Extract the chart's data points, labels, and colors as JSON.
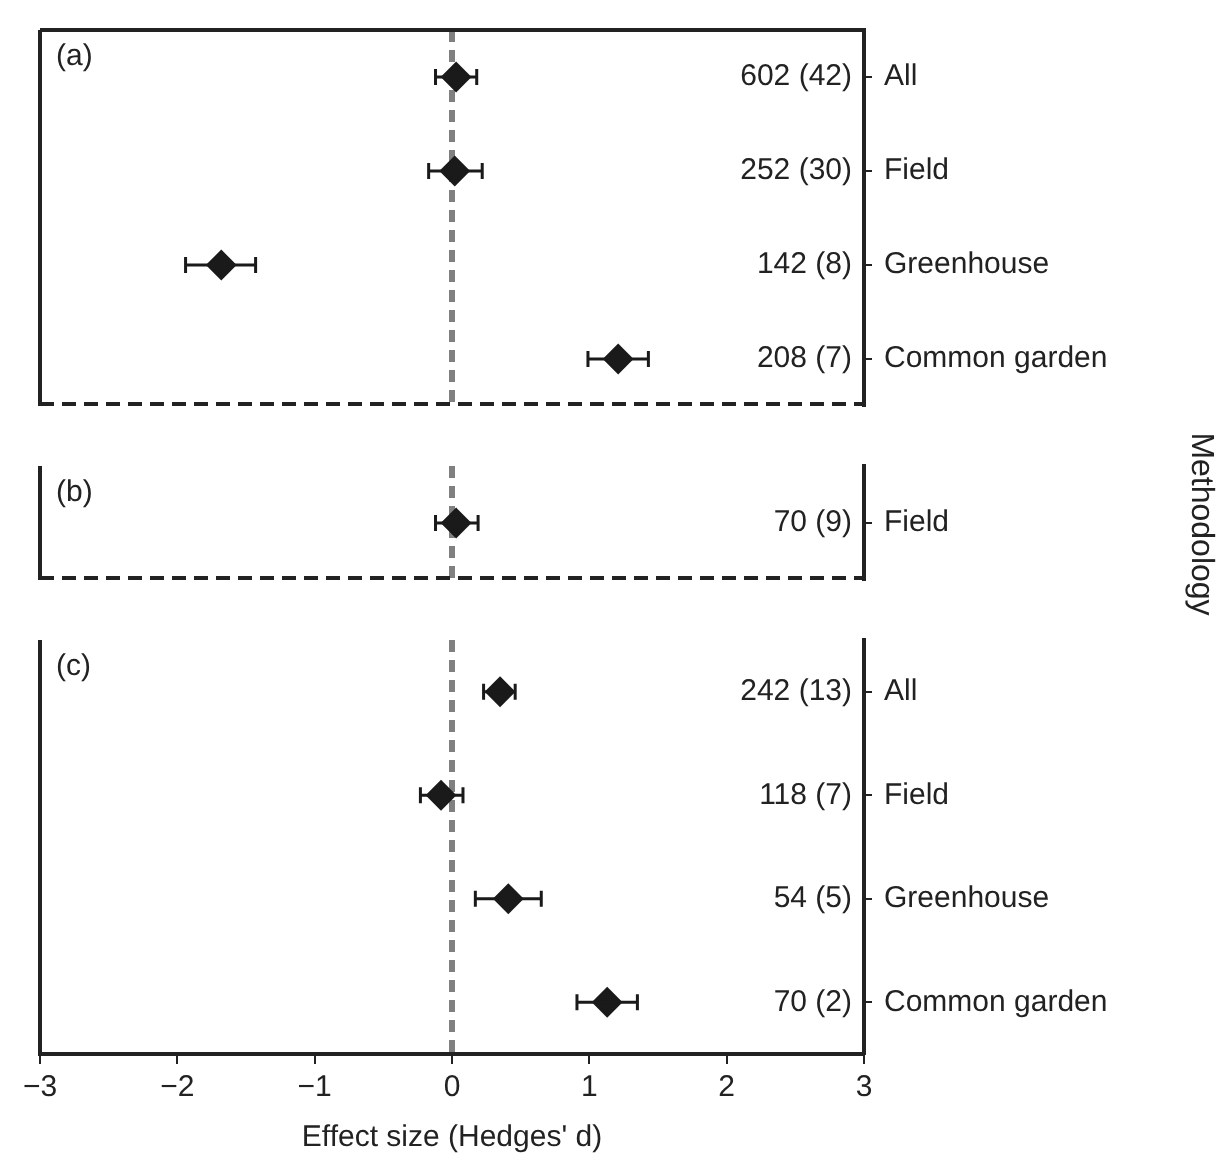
{
  "chart_data": [
    {
      "type": "scatter",
      "title": "(a)",
      "orientation": "horizontal",
      "categories": [
        "All",
        "Field",
        "Greenhouse",
        "Common garden"
      ],
      "values": [
        0.03,
        0.02,
        -1.68,
        1.21
      ],
      "errors": [
        [
          -0.12,
          0.18
        ],
        [
          -0.17,
          0.22
        ],
        [
          -1.94,
          -1.43
        ],
        [
          0.99,
          1.43
        ]
      ],
      "annotations": [
        "602 (42)",
        "252 (30)",
        "142 (8)",
        "208 (7)"
      ],
      "color": "#1a1a1a",
      "marker": "diamond",
      "xlim": [
        -3,
        3
      ],
      "tick_labels": "y",
      "ref_lines": [
        {
          "axis": "x",
          "value": 0,
          "color": "#808080",
          "line_style": "dashed"
        }
      ]
    },
    {
      "type": "scatter",
      "title": "(b)",
      "orientation": "horizontal",
      "categories": [
        "Field"
      ],
      "values": [
        0.03
      ],
      "errors": [
        [
          -0.12,
          0.19
        ]
      ],
      "annotations": [
        "70 (9)"
      ],
      "color": "#1a1a1a",
      "marker": "diamond",
      "ylabel": "Methodology",
      "xlim": [
        -3,
        3
      ],
      "tick_labels": "y",
      "ref_lines": [
        {
          "axis": "x",
          "value": 0,
          "color": "#808080",
          "line_style": "dashed"
        }
      ]
    },
    {
      "type": "scatter",
      "title": "(c)",
      "orientation": "horizontal",
      "categories": [
        "All",
        "Field",
        "Greenhouse",
        "Common garden"
      ],
      "values": [
        0.35,
        -0.08,
        0.41,
        1.13
      ],
      "errors": [
        [
          0.23,
          0.46
        ],
        [
          -0.23,
          0.08
        ],
        [
          0.17,
          0.65
        ],
        [
          0.91,
          1.35
        ]
      ],
      "annotations": [
        "242 (13)",
        "118 (7)",
        "54 (5)",
        "70 (2)"
      ],
      "color": "#1a1a1a",
      "marker": "diamond",
      "xlabel": "Effect size (Hedges' d)",
      "xlim": [
        -3,
        3
      ],
      "xticks": [
        {
          "value": -3,
          "label": "−3"
        },
        {
          "value": -2,
          "label": "−2"
        },
        {
          "value": -1,
          "label": "−1"
        },
        0,
        1,
        2,
        3
      ],
      "ref_lines": [
        {
          "axis": "x",
          "value": 0,
          "color": "#808080",
          "line_style": "dashed"
        }
      ]
    }
  ]
}
